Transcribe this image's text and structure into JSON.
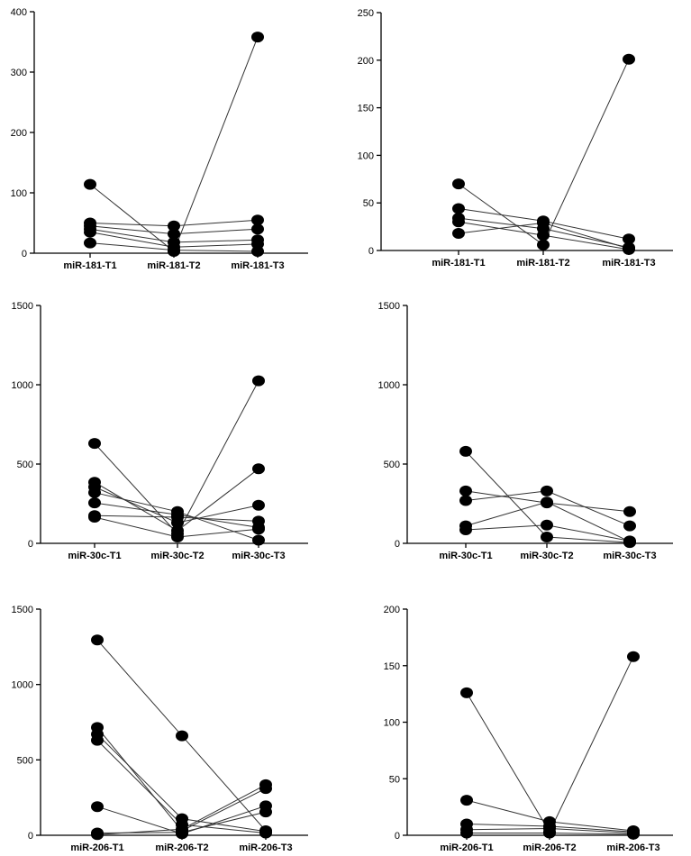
{
  "chart_data": [
    {
      "type": "line",
      "title": "",
      "xlabel": "",
      "ylabel": "",
      "categories": [
        "miR-181-T1",
        "miR-181-T2",
        "miR-181-T3"
      ],
      "ylim": [
        0,
        400
      ],
      "yticks": [
        0,
        100,
        200,
        300,
        400
      ],
      "grid": false,
      "series": [
        {
          "values": [
            114,
            3,
            358
          ]
        },
        {
          "values": [
            50,
            45,
            55
          ]
        },
        {
          "values": [
            45,
            32,
            40
          ]
        },
        {
          "values": [
            40,
            18,
            22
          ]
        },
        {
          "values": [
            35,
            10,
            15
          ]
        },
        {
          "values": [
            17,
            5,
            3
          ]
        }
      ]
    },
    {
      "type": "line",
      "title": "",
      "xlabel": "",
      "ylabel": "",
      "categories": [
        "miR-181-T1",
        "miR-181-T2",
        "miR-181-T3"
      ],
      "ylim": [
        0,
        250
      ],
      "yticks": [
        0,
        50,
        100,
        150,
        200,
        250
      ],
      "grid": false,
      "series": [
        {
          "values": [
            70,
            6,
            201
          ]
        },
        {
          "values": [
            44,
            31,
            12
          ]
        },
        {
          "values": [
            34,
            23,
            3
          ]
        },
        {
          "values": [
            30,
            16,
            1
          ]
        },
        {
          "values": [
            18,
            29,
            2
          ]
        }
      ]
    },
    {
      "type": "line",
      "title": "",
      "xlabel": "",
      "ylabel": "",
      "categories": [
        "miR-30c-T1",
        "miR-30c-T2",
        "miR-30c-T3"
      ],
      "ylim": [
        0,
        1500
      ],
      "yticks": [
        0,
        500,
        1000,
        1500
      ],
      "grid": false,
      "series": [
        {
          "values": [
            630,
            60,
            1025
          ]
        },
        {
          "values": [
            385,
            80,
            470
          ]
        },
        {
          "values": [
            355,
            130,
            240
          ]
        },
        {
          "values": [
            320,
            200,
            20
          ]
        },
        {
          "values": [
            255,
            180,
            100
          ]
        },
        {
          "values": [
            175,
            165,
            140
          ]
        },
        {
          "values": [
            165,
            40,
            90
          ]
        }
      ]
    },
    {
      "type": "line",
      "title": "",
      "xlabel": "",
      "ylabel": "",
      "categories": [
        "miR-30c-T1",
        "miR-30c-T2",
        "miR-30c-T3"
      ],
      "ylim": [
        0,
        1500
      ],
      "yticks": [
        0,
        500,
        1000,
        1500
      ],
      "grid": false,
      "series": [
        {
          "values": [
            580,
            40,
            5
          ]
        },
        {
          "values": [
            330,
            255,
            200
          ]
        },
        {
          "values": [
            270,
            330,
            110
          ]
        },
        {
          "values": [
            110,
            260,
            10
          ]
        },
        {
          "values": [
            85,
            115,
            15
          ]
        }
      ]
    },
    {
      "type": "line",
      "title": "",
      "xlabel": "",
      "ylabel": "",
      "categories": [
        "miR-206-T1",
        "miR-206-T2",
        "miR-206-T3"
      ],
      "ylim": [
        0,
        1500
      ],
      "yticks": [
        0,
        500,
        1000,
        1500
      ],
      "grid": false,
      "series": [
        {
          "values": [
            1295,
            660,
            30
          ]
        },
        {
          "values": [
            715,
            30,
            310
          ]
        },
        {
          "values": [
            670,
            110,
            25
          ]
        },
        {
          "values": [
            630,
            70,
            15
          ]
        },
        {
          "values": [
            190,
            10,
            195
          ]
        },
        {
          "values": [
            15,
            20,
            155
          ]
        },
        {
          "values": [
            5,
            40,
            335
          ]
        }
      ]
    },
    {
      "type": "line",
      "title": "",
      "xlabel": "",
      "ylabel": "",
      "categories": [
        "miR-206-T1",
        "miR-206-T2",
        "miR-206-T3"
      ],
      "ylim": [
        0,
        200
      ],
      "yticks": [
        0,
        50,
        100,
        150,
        200
      ],
      "grid": false,
      "series": [
        {
          "values": [
            126,
            3,
            158
          ]
        },
        {
          "values": [
            31,
            12,
            4
          ]
        },
        {
          "values": [
            10,
            8,
            3
          ]
        },
        {
          "values": [
            5,
            6,
            2
          ]
        },
        {
          "values": [
            2,
            2,
            1
          ]
        }
      ]
    }
  ]
}
